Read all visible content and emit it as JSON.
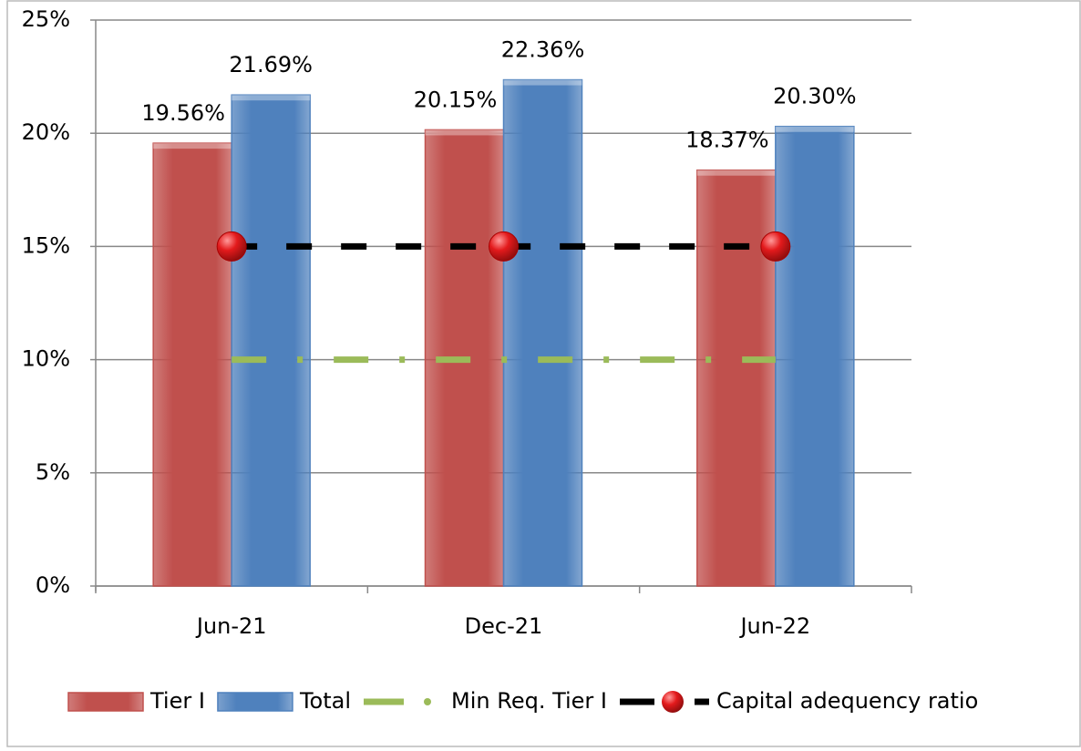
{
  "chart_data": {
    "type": "bar",
    "categories": [
      "Jun-21",
      "Dec-21",
      "Jun-22"
    ],
    "series": [
      {
        "name": "Tier I",
        "type": "bar",
        "color": "#c0504d",
        "values": [
          19.56,
          20.15,
          18.37
        ],
        "value_labels": [
          "19.56%",
          "20.15%",
          "18.37%"
        ]
      },
      {
        "name": "Total",
        "type": "bar",
        "color": "#4f81bd",
        "values": [
          21.69,
          22.36,
          20.3
        ],
        "value_labels": [
          "21.69%",
          "22.36%",
          "20.30%"
        ]
      },
      {
        "name": "Min Req. Tier I",
        "type": "line",
        "color": "#9bbb59",
        "values": [
          10,
          10,
          10
        ]
      },
      {
        "name": "Capital adequency ratio",
        "type": "line",
        "color": "#000000",
        "marker_color": "#e31a1c",
        "values": [
          15,
          15,
          15
        ]
      }
    ],
    "ylim": [
      0,
      25
    ],
    "yticks": [
      {
        "value": 0,
        "label": "0%"
      },
      {
        "value": 5,
        "label": "5%"
      },
      {
        "value": 10,
        "label": "10%"
      },
      {
        "value": 15,
        "label": "15%"
      },
      {
        "value": 20,
        "label": "20%"
      },
      {
        "value": 25,
        "label": "25%"
      }
    ],
    "grid": true,
    "legend": "bottom"
  }
}
